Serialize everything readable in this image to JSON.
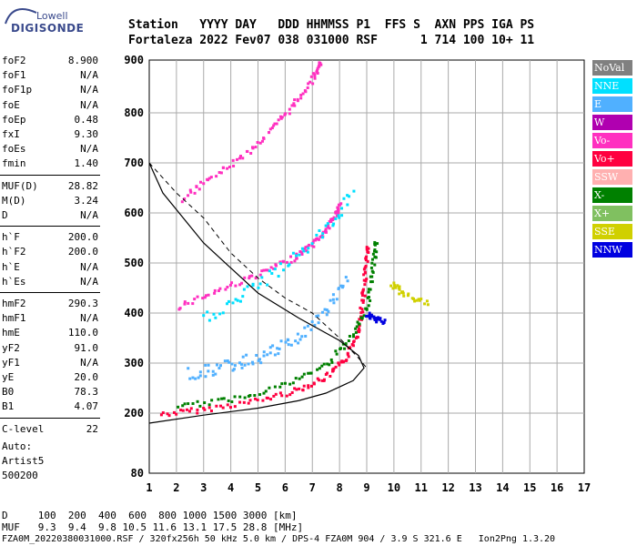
{
  "logo": {
    "line1": "Lowell",
    "line2": "DIGISONDE"
  },
  "header": {
    "line1": "Station   YYYY DAY   DDD HHMMSS P1  FFS S  AXN PPS IGA PS",
    "line2": "Fortaleza 2022 Fev07 038 031000 RSF      1 714 100 10+ 11"
  },
  "params": [
    {
      "name": "foF2",
      "value": "8.900"
    },
    {
      "name": "foF1",
      "value": "N/A"
    },
    {
      "name": "foF1p",
      "value": "N/A"
    },
    {
      "name": "foE",
      "value": "N/A"
    },
    {
      "name": "foEp",
      "value": "0.48"
    },
    {
      "name": "fxI",
      "value": "9.30"
    },
    {
      "name": "foEs",
      "value": "N/A"
    },
    {
      "name": "fmin",
      "value": "1.40"
    },
    {
      "name": "MUF(D)",
      "value": "28.82"
    },
    {
      "name": "M(D)",
      "value": "3.24"
    },
    {
      "name": "D",
      "value": "N/A"
    },
    {
      "name": "h`F",
      "value": "200.0"
    },
    {
      "name": "h`F2",
      "value": "200.0"
    },
    {
      "name": "h`E",
      "value": "N/A"
    },
    {
      "name": "h`Es",
      "value": "N/A"
    },
    {
      "name": "hmF2",
      "value": "290.3"
    },
    {
      "name": "hmF1",
      "value": "N/A"
    },
    {
      "name": "hmE",
      "value": "110.0"
    },
    {
      "name": "yF2",
      "value": "91.0"
    },
    {
      "name": "yF1",
      "value": "N/A"
    },
    {
      "name": "yE",
      "value": "20.0"
    },
    {
      "name": "B0",
      "value": "78.3"
    },
    {
      "name": "B1",
      "value": "4.07"
    },
    {
      "name": "C-level",
      "value": "22"
    }
  ],
  "auto": {
    "line1": "Auto:",
    "line2": "Artist5",
    "line3": "500200"
  },
  "footer": {
    "d_row": "D     100  200  400  600  800 1000 1500 3000 [km]",
    "muf_row": "MUF   9.3  9.4  9.8 10.5 11.6 13.1 17.5 28.8 [MHz]",
    "file_row": "FZA0M_20220380031000.RSF / 320fx256h 50 kHz 5.0 km / DPS-4 FZA0M 904 / 3.9 S 321.6 E   Ion2Png 1.3.20"
  },
  "legend": [
    {
      "label": "NoVal",
      "color": "#808080"
    },
    {
      "label": "NNE",
      "color": "#00e0ff"
    },
    {
      "label": "E",
      "color": "#50b0ff"
    },
    {
      "label": "W",
      "color": "#b000b0"
    },
    {
      "label": "Vo-",
      "color": "#ff30c0"
    },
    {
      "label": "Vo+",
      "color": "#ff0040"
    },
    {
      "label": "SSW",
      "color": "#ffb0b0"
    },
    {
      "label": "X-",
      "color": "#008000"
    },
    {
      "label": "X+",
      "color": "#80c060"
    },
    {
      "label": "SSE",
      "color": "#d0d000"
    },
    {
      "label": "NNW",
      "color": "#0000e0"
    }
  ],
  "chart_data": {
    "type": "scatter",
    "xlim": [
      1,
      17
    ],
    "ylim": [
      80,
      900
    ],
    "x_ticks": [
      "1",
      "2",
      "3",
      "4",
      "5",
      "6",
      "7",
      "8",
      "9",
      "10",
      "11",
      "12",
      "13",
      "14",
      "15",
      "16",
      "17"
    ],
    "y_ticks": [
      "80",
      "200",
      "300",
      "400",
      "500",
      "600",
      "700",
      "800",
      "900"
    ],
    "grid": true,
    "series": [
      {
        "name": "Vo+",
        "trace": [
          [
            1.4,
            200
          ],
          [
            3,
            210
          ],
          [
            5,
            228
          ],
          [
            6.5,
            250
          ],
          [
            7.5,
            275
          ],
          [
            8.2,
            310
          ],
          [
            8.6,
            360
          ],
          [
            8.8,
            420
          ],
          [
            8.9,
            480
          ],
          [
            9.0,
            540
          ]
        ]
      },
      {
        "name": "Vo-",
        "trace": [
          [
            2,
            415
          ],
          [
            3.5,
            448
          ],
          [
            5,
            480
          ],
          [
            6.2,
            510
          ],
          [
            7,
            540
          ],
          [
            7.5,
            570
          ],
          [
            7.8,
            600
          ],
          [
            8,
            620
          ]
        ]
      },
      {
        "name": "Vo-",
        "trace": [
          [
            2.2,
            630
          ],
          [
            3.3,
            675
          ],
          [
            4.5,
            720
          ],
          [
            5.5,
            770
          ],
          [
            6.3,
            820
          ],
          [
            7,
            870
          ],
          [
            7.3,
            900
          ]
        ]
      },
      {
        "name": "X-",
        "trace": [
          [
            2,
            215
          ],
          [
            4,
            230
          ],
          [
            6,
            260
          ],
          [
            7.5,
            300
          ],
          [
            8.5,
            360
          ],
          [
            9,
            420
          ],
          [
            9.2,
            500
          ],
          [
            9.3,
            550
          ]
        ]
      },
      {
        "name": "E",
        "trace": [
          [
            2.4,
            280
          ],
          [
            3.5,
            292
          ],
          [
            4.5,
            305
          ],
          [
            5.5,
            325
          ],
          [
            6.5,
            355
          ],
          [
            7.5,
            410
          ],
          [
            8.3,
            470
          ]
        ]
      },
      {
        "name": "NNE",
        "trace": [
          [
            3,
            390
          ],
          [
            4.5,
            440
          ],
          [
            6,
            500
          ],
          [
            7.5,
            570
          ],
          [
            8.5,
            650
          ]
        ]
      },
      {
        "name": "NNW",
        "trace": [
          [
            9,
            400
          ],
          [
            9.3,
            390
          ],
          [
            9.6,
            385
          ]
        ]
      },
      {
        "name": "SSE",
        "trace": [
          [
            9.9,
            460
          ],
          [
            10.3,
            440
          ],
          [
            11.3,
            420
          ]
        ]
      }
    ],
    "profile": [
      [
        1,
        180
      ],
      [
        3,
        196
      ],
      [
        5,
        210
      ],
      [
        6.5,
        225
      ],
      [
        7.5,
        240
      ],
      [
        8.5,
        265
      ],
      [
        8.9,
        290.3
      ],
      [
        8.7,
        315
      ],
      [
        8.0,
        345
      ],
      [
        6.5,
        390
      ],
      [
        5,
        440
      ],
      [
        3,
        540
      ],
      [
        1.5,
        640
      ],
      [
        1,
        700
      ]
    ],
    "dashed": [
      [
        1,
        700
      ],
      [
        2,
        640
      ],
      [
        3,
        590
      ],
      [
        4,
        520
      ],
      [
        5,
        470
      ],
      [
        6,
        430
      ],
      [
        7,
        400
      ],
      [
        8,
        350
      ],
      [
        8.7,
        310
      ],
      [
        9,
        290
      ]
    ]
  }
}
